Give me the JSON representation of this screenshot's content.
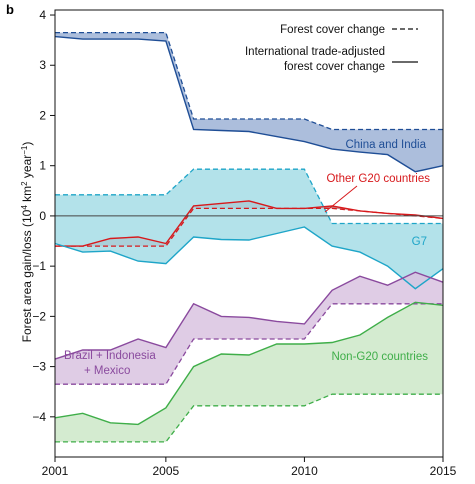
{
  "panel_label": "b",
  "chart_data": {
    "type": "area",
    "ylabel_main": "Forest area gain/loss (10",
    "ylabel_sup1": "4",
    "ylabel_mid": " km",
    "ylabel_sup2": "2",
    "ylabel_mid2": " year",
    "ylabel_sup3": "−1",
    "ylabel_end": ")",
    "x_ticks": [
      2001,
      2005,
      2010,
      2015
    ],
    "x_tick_labels": [
      "2001",
      "2005",
      "2010",
      "2015"
    ],
    "y_ticks": [
      -4,
      -3,
      -2,
      -1,
      0,
      1,
      2,
      3,
      4
    ],
    "y_tick_labels": [
      "−4",
      "−3",
      "−2",
      "−1",
      "0",
      "1",
      "2",
      "3",
      "4"
    ],
    "xlim": [
      2001,
      2015
    ],
    "ylim": [
      -4.8,
      4.1
    ],
    "zero_line": true,
    "legend": {
      "placement": "top-right",
      "dashed_label": "Forest cover change",
      "solid_label_line1": "International trade-adjusted",
      "solid_label_line2": "forest cover change"
    },
    "x": [
      2001,
      2002,
      2003,
      2004,
      2005,
      2006,
      2007,
      2008,
      2009,
      2010,
      2011,
      2012,
      2013,
      2014,
      2015
    ],
    "series": [
      {
        "name": "China and India",
        "fill": "#9db3d6",
        "line": "#1f4e96",
        "label_color": "#1f4e96",
        "forest_cover_change": [
          3.65,
          3.65,
          3.65,
          3.65,
          3.65,
          1.93,
          1.93,
          1.93,
          1.93,
          1.93,
          1.72,
          1.72,
          1.72,
          1.72,
          1.72
        ],
        "trade_adjusted": [
          3.57,
          3.52,
          3.52,
          3.52,
          3.48,
          1.72,
          1.7,
          1.68,
          1.58,
          1.48,
          1.33,
          1.27,
          1.22,
          0.88,
          1.0
        ]
      },
      {
        "name": "Other G20 countries",
        "fill": "#b57375",
        "line": "#d7191c",
        "label_color": "#d7191c",
        "forest_cover_change": [
          -0.6,
          -0.6,
          -0.6,
          -0.6,
          -0.6,
          0.15,
          0.15,
          0.15,
          0.15,
          0.15,
          0.15,
          0.1,
          0.05,
          0.0,
          -0.05
        ],
        "trade_adjusted": [
          -0.6,
          -0.6,
          -0.45,
          -0.42,
          -0.55,
          0.2,
          0.25,
          0.3,
          0.15,
          0.15,
          0.2,
          0.1,
          0.05,
          0.02,
          -0.05
        ]
      },
      {
        "name": "G7",
        "fill": "#a6dde6",
        "line": "#1ea5c8",
        "label_color": "#1ea5c8",
        "forest_cover_change": [
          0.42,
          0.42,
          0.42,
          0.42,
          0.42,
          0.93,
          0.93,
          0.93,
          0.93,
          0.93,
          -0.15,
          -0.15,
          -0.15,
          -0.15,
          -0.15
        ],
        "trade_adjusted": [
          -0.55,
          -0.72,
          -0.7,
          -0.9,
          -0.95,
          -0.42,
          -0.47,
          -0.48,
          -0.35,
          -0.22,
          -0.6,
          -0.72,
          -1.0,
          -1.45,
          -1.05
        ]
      },
      {
        "name": "Brazil + Indonesia + Mexico",
        "label_line1": "Brazil + Indonesia",
        "label_line2": "+ Mexico",
        "fill": "#d9c3e0",
        "line": "#8a4a9e",
        "label_color": "#8a4a9e",
        "forest_cover_change": [
          -3.35,
          -3.35,
          -3.35,
          -3.35,
          -3.35,
          -2.45,
          -2.45,
          -2.45,
          -2.45,
          -2.45,
          -1.75,
          -1.75,
          -1.75,
          -1.75,
          -1.75
        ],
        "trade_adjusted": [
          -2.85,
          -2.67,
          -2.67,
          -2.45,
          -2.62,
          -1.75,
          -2.0,
          -2.02,
          -2.1,
          -2.15,
          -1.48,
          -1.2,
          -1.38,
          -1.12,
          -1.32
        ]
      },
      {
        "name": "Non-G20 countries",
        "fill": "#cce8c8",
        "line": "#3fae49",
        "label_color": "#3fae49",
        "forest_cover_change": [
          -4.5,
          -4.5,
          -4.5,
          -4.5,
          -4.5,
          -3.78,
          -3.78,
          -3.78,
          -3.78,
          -3.78,
          -3.55,
          -3.55,
          -3.55,
          -3.55,
          -3.55
        ],
        "trade_adjusted": [
          -4.02,
          -3.93,
          -4.12,
          -4.15,
          -3.82,
          -3.0,
          -2.75,
          -2.77,
          -2.55,
          -2.55,
          -2.52,
          -2.37,
          -2.02,
          -1.72,
          -1.78
        ]
      }
    ]
  }
}
